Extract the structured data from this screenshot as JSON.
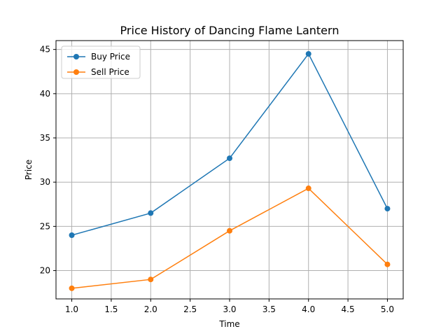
{
  "chart_data": {
    "type": "line",
    "title": "Price History of Dancing Flame Lantern",
    "xlabel": "Time",
    "ylabel": "Price",
    "xlim": [
      0.8,
      5.2
    ],
    "ylim": [
      16.8,
      46.0
    ],
    "xticks": [
      1.0,
      1.5,
      2.0,
      2.5,
      3.0,
      3.5,
      4.0,
      4.5,
      5.0
    ],
    "xtick_labels": [
      "1.0",
      "1.5",
      "2.0",
      "2.5",
      "3.0",
      "3.5",
      "4.0",
      "4.5",
      "5.0"
    ],
    "yticks": [
      20,
      25,
      30,
      35,
      40,
      45
    ],
    "ytick_labels": [
      "20",
      "25",
      "30",
      "35",
      "40",
      "45"
    ],
    "grid": true,
    "legend_position": "top-left",
    "x": [
      1.0,
      2.0,
      3.0,
      4.0,
      5.0
    ],
    "series": [
      {
        "name": "Buy Price",
        "color": "#1f77b4",
        "values": [
          24.0,
          26.5,
          32.7,
          44.5,
          27.0
        ]
      },
      {
        "name": "Sell Price",
        "color": "#ff7f0e",
        "values": [
          18.0,
          19.0,
          24.5,
          29.3,
          20.7
        ]
      }
    ]
  }
}
